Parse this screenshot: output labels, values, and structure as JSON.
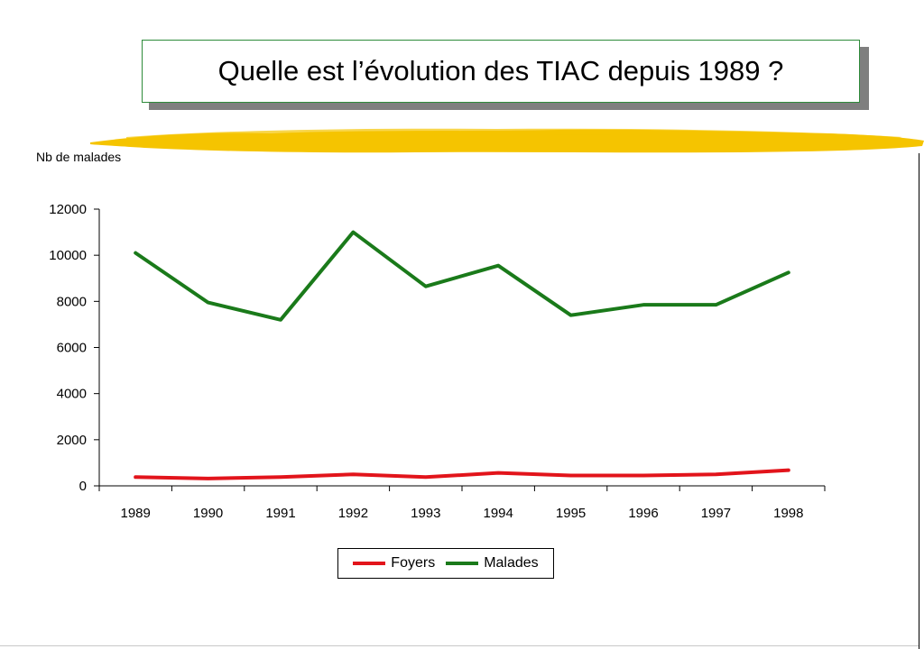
{
  "title": "Quelle est l’évolution des TIAC depuis 1989 ?",
  "brush_color": "#f5c400",
  "chart_data": {
    "type": "line",
    "ylabel": "Nb de malades",
    "xlabel": "",
    "categories": [
      "1989",
      "1990",
      "1991",
      "1992",
      "1993",
      "1994",
      "1995",
      "1996",
      "1997",
      "1998"
    ],
    "ylim": [
      0,
      12000
    ],
    "yticks": [
      "0",
      "2000",
      "4000",
      "6000",
      "8000",
      "10000",
      "12000"
    ],
    "grid": false,
    "legend_position": "bottom",
    "series": [
      {
        "name": "Foyers",
        "color": "#e2141b",
        "values": [
          380,
          320,
          380,
          500,
          380,
          560,
          450,
          450,
          500,
          680
        ]
      },
      {
        "name": "Malades",
        "color": "#1a7a1a",
        "values": [
          10100,
          7950,
          7200,
          11000,
          8650,
          9550,
          7400,
          7850,
          7850,
          9250
        ]
      }
    ]
  }
}
